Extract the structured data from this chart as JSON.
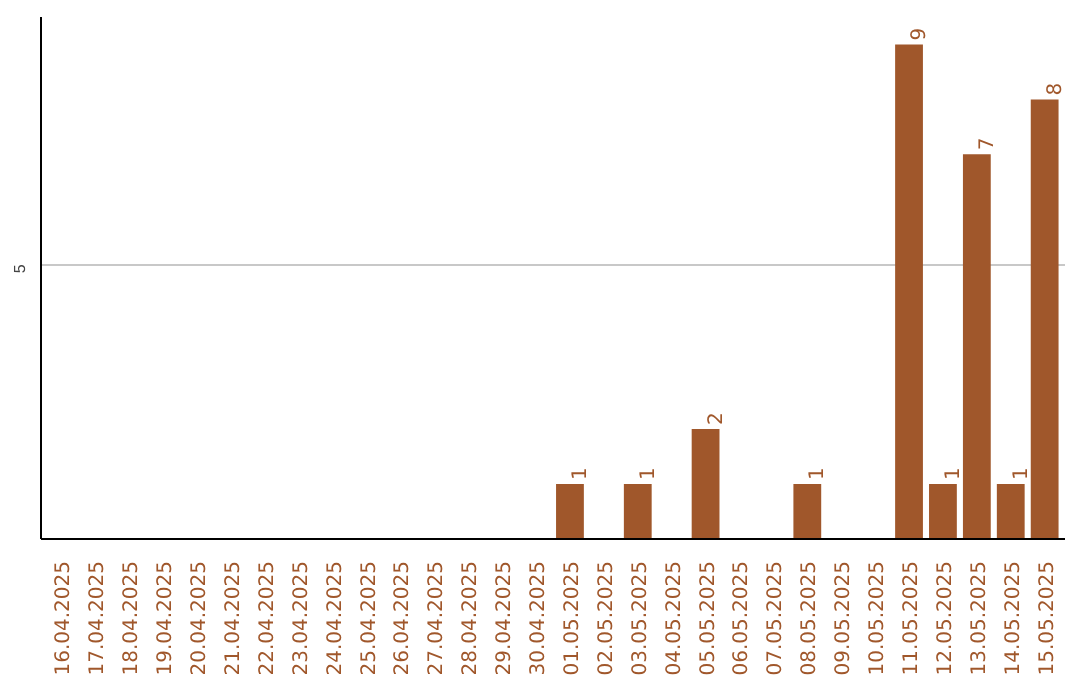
{
  "chart_data": {
    "type": "bar",
    "categories": [
      "16.04.2025",
      "17.04.2025",
      "18.04.2025",
      "19.04.2025",
      "20.04.2025",
      "21.04.2025",
      "22.04.2025",
      "23.04.2025",
      "24.04.2025",
      "25.04.2025",
      "26.04.2025",
      "27.04.2025",
      "28.04.2025",
      "29.04.2025",
      "30.04.2025",
      "01.05.2025",
      "02.05.2025",
      "03.05.2025",
      "04.05.2025",
      "05.05.2025",
      "06.05.2025",
      "07.05.2025",
      "08.05.2025",
      "09.05.2025",
      "10.05.2025",
      "11.05.2025",
      "12.05.2025",
      "13.05.2025",
      "14.05.2025",
      "15.05.2025"
    ],
    "values": [
      null,
      null,
      null,
      null,
      null,
      null,
      null,
      null,
      null,
      null,
      null,
      null,
      null,
      null,
      null,
      1,
      null,
      1,
      null,
      2,
      null,
      null,
      1,
      null,
      null,
      9,
      1,
      7,
      1,
      8
    ],
    "value_labels": [
      null,
      null,
      null,
      null,
      null,
      null,
      null,
      null,
      null,
      null,
      null,
      null,
      null,
      null,
      null,
      "1",
      null,
      "1",
      null,
      "2",
      null,
      null,
      "1",
      null,
      null,
      "9",
      "1",
      "7",
      "1",
      "8"
    ],
    "color": "#a0572b",
    "ylim": [
      0,
      9.5
    ],
    "yticks": [
      5
    ],
    "grid": "y"
  }
}
